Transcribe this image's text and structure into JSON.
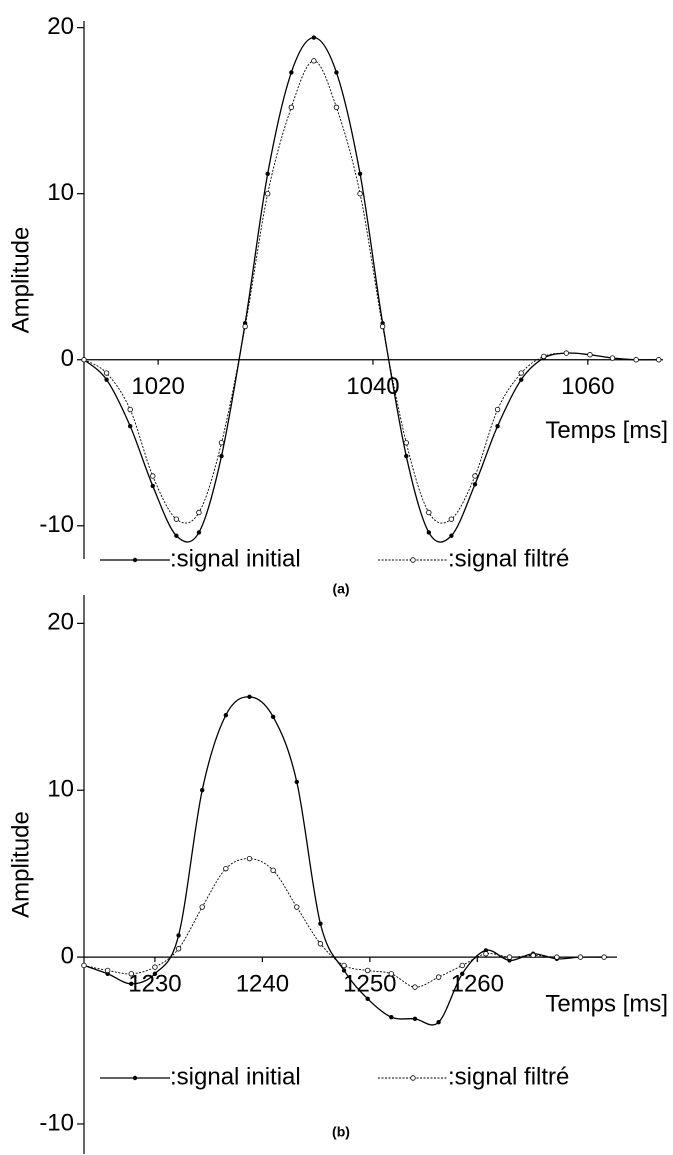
{
  "chart_data": [
    {
      "type": "line",
      "caption": "(a)",
      "xlabel": "Temps [ms]",
      "ylabel": "Amplitude",
      "x": [
        1013.1,
        1015.2,
        1017.4,
        1019.5,
        1021.7,
        1023.8,
        1025.9,
        1028.1,
        1030.2,
        1032.4,
        1034.5,
        1036.6,
        1038.8,
        1040.9,
        1043.1,
        1045.2,
        1047.3,
        1049.5,
        1051.6,
        1053.8,
        1055.9,
        1058.0,
        1060.2,
        1062.3,
        1064.5,
        1066.6
      ],
      "series": [
        {
          "name": ":signal initial",
          "color": "#000000",
          "linestyle": "solid",
          "marker": "dot",
          "values": [
            0,
            -1.2,
            -4.0,
            -7.6,
            -10.6,
            -10.4,
            -5.8,
            2.2,
            11.2,
            17.3,
            19.4,
            17.3,
            11.2,
            2.2,
            -5.8,
            -10.4,
            -10.6,
            -7.5,
            -4.0,
            -1.2,
            0.1,
            0.4,
            0.3,
            0.1,
            0,
            0
          ]
        },
        {
          "name": ":signal filtré",
          "color": "#000000",
          "linestyle": "dotted",
          "marker": "circle",
          "values": [
            0,
            -0.8,
            -3.0,
            -7.0,
            -9.6,
            -9.2,
            -5.0,
            2.0,
            10.0,
            15.2,
            18.0,
            15.2,
            10.0,
            2.0,
            -5.0,
            -9.2,
            -9.6,
            -7.0,
            -3.0,
            -0.8,
            0.2,
            0.4,
            0.3,
            0.1,
            0,
            0
          ]
        }
      ],
      "xlim": [
        1013.1,
        1067
      ],
      "ylim": [
        -12,
        20.4
      ],
      "xticks": [
        1020,
        1040,
        1060
      ],
      "yticks": [
        -10,
        0,
        10,
        20
      ]
    },
    {
      "type": "line",
      "caption": "(b)",
      "xlabel": "Temps [ms]",
      "ylabel": "Amplitude",
      "x": [
        1223.4,
        1225.6,
        1227.8,
        1230.0,
        1232.2,
        1234.4,
        1236.6,
        1238.8,
        1241.0,
        1243.2,
        1245.4,
        1247.6,
        1249.8,
        1252.0,
        1254.2,
        1256.4,
        1258.6,
        1260.8,
        1263.0,
        1265.2,
        1267.4,
        1269.6,
        1271.8
      ],
      "series": [
        {
          "name": ":signal initial",
          "color": "#000000",
          "linestyle": "solid",
          "marker": "dot",
          "values": [
            -0.5,
            -1.0,
            -1.6,
            -1.0,
            1.3,
            10.0,
            14.5,
            15.6,
            14.4,
            10.5,
            2.0,
            -0.8,
            -2.5,
            -3.6,
            -3.7,
            -3.9,
            -1.0,
            0.4,
            -0.2,
            0.2,
            -0.1,
            0,
            0
          ]
        },
        {
          "name": ":signal filtré",
          "color": "#000000",
          "linestyle": "dotted",
          "marker": "circle",
          "values": [
            -0.5,
            -0.8,
            -1.0,
            -0.6,
            0.5,
            3.0,
            5.3,
            5.9,
            5.2,
            3.0,
            0.8,
            -0.5,
            -0.8,
            -1.0,
            -1.8,
            -1.2,
            -0.5,
            0.2,
            0,
            0.1,
            0,
            0,
            0
          ]
        }
      ],
      "xlim": [
        1223.4,
        1273
      ],
      "ylim": [
        -11.8,
        21.7
      ],
      "xticks": [
        1230,
        1240,
        1250,
        1260
      ],
      "yticks": [
        -10,
        0,
        10,
        20
      ]
    }
  ]
}
